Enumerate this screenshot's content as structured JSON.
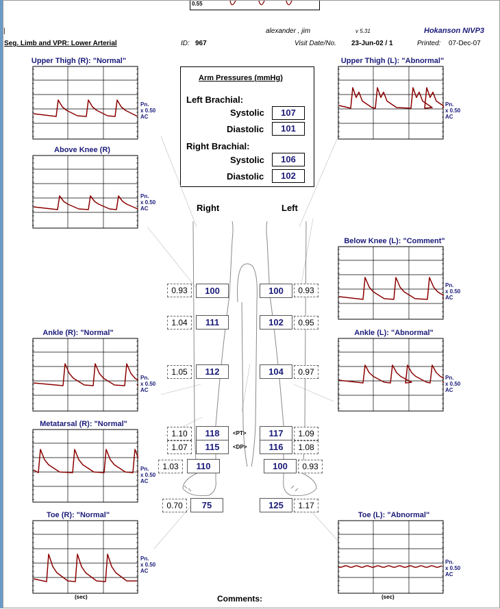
{
  "header": {
    "top_value": "0.55",
    "patient": "alexander ,  jim",
    "version": "v 5.31",
    "brand": "Hokanson NIVP3",
    "exam": "Seg. Limb and VPR:  Lower Arterial",
    "id_label": "ID:",
    "id_value": "967",
    "visit_label": "Visit Date/No.",
    "visit_value": "23-Jun-02 / 1",
    "printed_label": "Printed:",
    "printed_value": "07-Dec-07",
    "cursor": "|"
  },
  "arm_pressures": {
    "title": "Arm Pressures (mmHg)",
    "left_label": "Left Brachial:",
    "right_label": "Right Brachial:",
    "systolic_label": "Systolic",
    "diastolic_label": "Diastolic",
    "left_systolic": "107",
    "left_diastolic": "101",
    "right_systolic": "106",
    "right_diastolic": "102"
  },
  "side_labels": {
    "right": "Right",
    "left": "Left"
  },
  "pn_label": {
    "line1": "Pn.",
    "line2": "x 0.50",
    "line3": "AC"
  },
  "sec_label": "(sec)",
  "comments_label": "Comments:",
  "segments": {
    "r1_ratio": "0.93",
    "r1_pressure": "100",
    "l1_pressure": "100",
    "l1_ratio": "0.93",
    "r2_ratio": "1.04",
    "r2_pressure": "111",
    "l2_pressure": "102",
    "l2_ratio": "0.95",
    "r3_ratio": "1.05",
    "r3_pressure": "112",
    "l3_pressure": "104",
    "l3_ratio": "0.97",
    "r_pt_ratio": "1.10",
    "r_pt_pressure": "118",
    "pt_label": "<PT>",
    "l_pt_pressure": "117",
    "l_pt_ratio": "1.09",
    "r_dp_ratio": "1.07",
    "r_dp_pressure": "115",
    "dp_label": "<DP>",
    "l_dp_pressure": "116",
    "l_dp_ratio": "1.08",
    "r_met_ratio": "1.03",
    "r_met_pressure": "110",
    "l_met_pressure": "100",
    "l_met_ratio": "0.93",
    "r_toe_ratio": "0.70",
    "r_toe_pressure": "75",
    "l_toe_pressure": "125",
    "l_toe_ratio": "1.17"
  },
  "chart_titles": {
    "upper_thigh_r": "Upper Thigh (R): \"Normal\"",
    "upper_thigh_l": "Upper Thigh (L): \"Abnormal\"",
    "above_knee_r": "Above Knee (R)",
    "below_knee_l": "Below Knee (L): \"Comment\"",
    "ankle_r": "Ankle (R): \"Normal\"",
    "ankle_l": "Ankle (L): \"Abnormal\"",
    "metatarsal_r": "Metatarsal (R): \"Normal\"",
    "toe_r": "Toe (R): \"Normal\"",
    "toe_l": "Toe (L): \"Abnormal\""
  },
  "colors": {
    "waveform": "#8b0000",
    "label": "#1a1a7a",
    "background_window": "#6b9ac9"
  }
}
